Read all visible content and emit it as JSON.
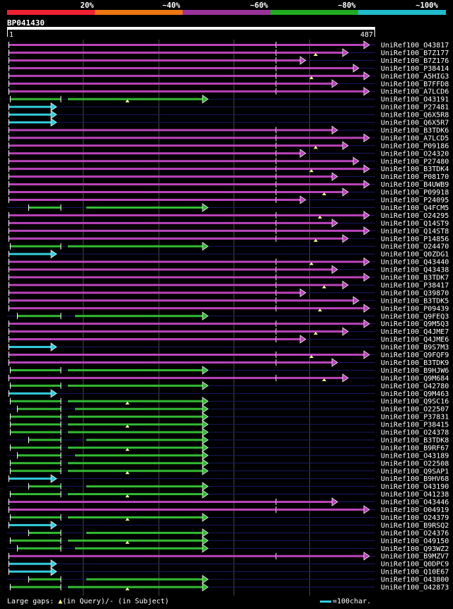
{
  "header": {
    "coverage_labels": [
      "20%",
      "~40%",
      "~60%",
      "~80%",
      "~100%"
    ],
    "coverage_colors": [
      "#ee2233",
      "#ee7711",
      "#993399",
      "#22aa22",
      "#22bbcc"
    ]
  },
  "query": {
    "id": "BP041430",
    "start": "1",
    "end": "487"
  },
  "legend": {
    "prefix": "Large gaps: ",
    "query_symbol": "▲",
    "query_text": "(in Query)/- (in Subject)",
    "scale_text": "=100char."
  },
  "colors": {
    "magenta": "#bb44bb",
    "green": "#33bb33",
    "cyan": "#33ccdd",
    "marker": "#ffff99",
    "subject_gap": "#1a1a66"
  },
  "hits": [
    {
      "id": "UniRef100_O43817",
      "color": "magenta"
    },
    {
      "id": "UniRef100_B7Z177",
      "color": "magenta"
    },
    {
      "id": "UniRef100_B7Z176",
      "color": "magenta"
    },
    {
      "id": "UniRef100_P38414",
      "color": "magenta"
    },
    {
      "id": "UniRef100_A5HIG3",
      "color": "magenta"
    },
    {
      "id": "UniRef100_B7FFD8",
      "color": "magenta"
    },
    {
      "id": "UniRef100_A7LCD6",
      "color": "magenta"
    },
    {
      "id": "UniRef100_O43191",
      "color": "green"
    },
    {
      "id": "UniRef100_P27481",
      "color": "cyan"
    },
    {
      "id": "UniRef100_Q6X5R8",
      "color": "cyan"
    },
    {
      "id": "UniRef100_Q6X5R7",
      "color": "cyan"
    },
    {
      "id": "UniRef100_B3TDK6",
      "color": "magenta"
    },
    {
      "id": "UniRef100_A7LCD5",
      "color": "magenta"
    },
    {
      "id": "UniRef100_P09186",
      "color": "magenta"
    },
    {
      "id": "UniRef100_O24320",
      "color": "magenta"
    },
    {
      "id": "UniRef100_P27480",
      "color": "magenta"
    },
    {
      "id": "UniRef100_B3TDK4",
      "color": "magenta"
    },
    {
      "id": "UniRef100_P08170",
      "color": "magenta"
    },
    {
      "id": "UniRef100_B4UWB9",
      "color": "magenta"
    },
    {
      "id": "UniRef100_P09918",
      "color": "magenta"
    },
    {
      "id": "UniRef100_P24095",
      "color": "magenta"
    },
    {
      "id": "UniRef100_Q4FCM5",
      "color": "green"
    },
    {
      "id": "UniRef100_O24295",
      "color": "magenta"
    },
    {
      "id": "UniRef100_Q14ST9",
      "color": "magenta"
    },
    {
      "id": "UniRef100_Q14ST8",
      "color": "magenta"
    },
    {
      "id": "UniRef100_P14856",
      "color": "magenta"
    },
    {
      "id": "UniRef100_O24470",
      "color": "green"
    },
    {
      "id": "UniRef100_Q0ZDG1",
      "color": "cyan"
    },
    {
      "id": "UniRef100_Q43440",
      "color": "magenta"
    },
    {
      "id": "UniRef100_Q43438",
      "color": "magenta"
    },
    {
      "id": "UniRef100_B3TDK7",
      "color": "magenta"
    },
    {
      "id": "UniRef100_P38417",
      "color": "magenta"
    },
    {
      "id": "UniRef100_Q39870",
      "color": "magenta"
    },
    {
      "id": "UniRef100_B3TDK5",
      "color": "magenta"
    },
    {
      "id": "UniRef100_P09439",
      "color": "magenta"
    },
    {
      "id": "UniRef100_Q9FEQ3",
      "color": "green"
    },
    {
      "id": "UniRef100_Q9M5Q3",
      "color": "magenta"
    },
    {
      "id": "UniRef100_Q4JME7",
      "color": "magenta"
    },
    {
      "id": "UniRef100_Q4JME6",
      "color": "magenta"
    },
    {
      "id": "UniRef100_B9S7M3",
      "color": "cyan"
    },
    {
      "id": "UniRef100_Q9FQF9",
      "color": "magenta"
    },
    {
      "id": "UniRef100_B3TDK9",
      "color": "magenta"
    },
    {
      "id": "UniRef100_B9HJW6",
      "color": "green"
    },
    {
      "id": "UniRef100_Q9M684",
      "color": "magenta"
    },
    {
      "id": "UniRef100_O42780",
      "color": "green"
    },
    {
      "id": "UniRef100_Q9M463",
      "color": "cyan"
    },
    {
      "id": "UniRef100_Q9SC16",
      "color": "green"
    },
    {
      "id": "UniRef100_O22507",
      "color": "green"
    },
    {
      "id": "UniRef100_P37831",
      "color": "green"
    },
    {
      "id": "UniRef100_P38415",
      "color": "green"
    },
    {
      "id": "UniRef100_O24378",
      "color": "green"
    },
    {
      "id": "UniRef100_B3TDK8",
      "color": "green"
    },
    {
      "id": "UniRef100_B9RF67",
      "color": "green"
    },
    {
      "id": "UniRef100_O43189",
      "color": "green"
    },
    {
      "id": "UniRef100_O22508",
      "color": "green"
    },
    {
      "id": "UniRef100_Q9SAP1",
      "color": "green"
    },
    {
      "id": "UniRef100_B9HV68",
      "color": "cyan"
    },
    {
      "id": "UniRef100_O43190",
      "color": "green"
    },
    {
      "id": "UniRef100_O41238",
      "color": "green"
    },
    {
      "id": "UniRef100_O43446",
      "color": "magenta"
    },
    {
      "id": "UniRef100_O04919",
      "color": "magenta"
    },
    {
      "id": "UniRef100_O24379",
      "color": "green"
    },
    {
      "id": "UniRef100_B9RSQ2",
      "color": "cyan"
    },
    {
      "id": "UniRef100_O24376",
      "color": "green"
    },
    {
      "id": "UniRef100_O49150",
      "color": "green"
    },
    {
      "id": "UniRef100_Q93WZ2",
      "color": "green"
    },
    {
      "id": "UniRef100_B9MZV7",
      "color": "magenta"
    },
    {
      "id": "UniRef100_Q0DPC9",
      "color": "cyan"
    },
    {
      "id": "UniRef100_Q10E67",
      "color": "cyan"
    },
    {
      "id": "UniRef100_O43800",
      "color": "green"
    },
    {
      "id": "UniRef100_O42873",
      "color": "green"
    }
  ]
}
